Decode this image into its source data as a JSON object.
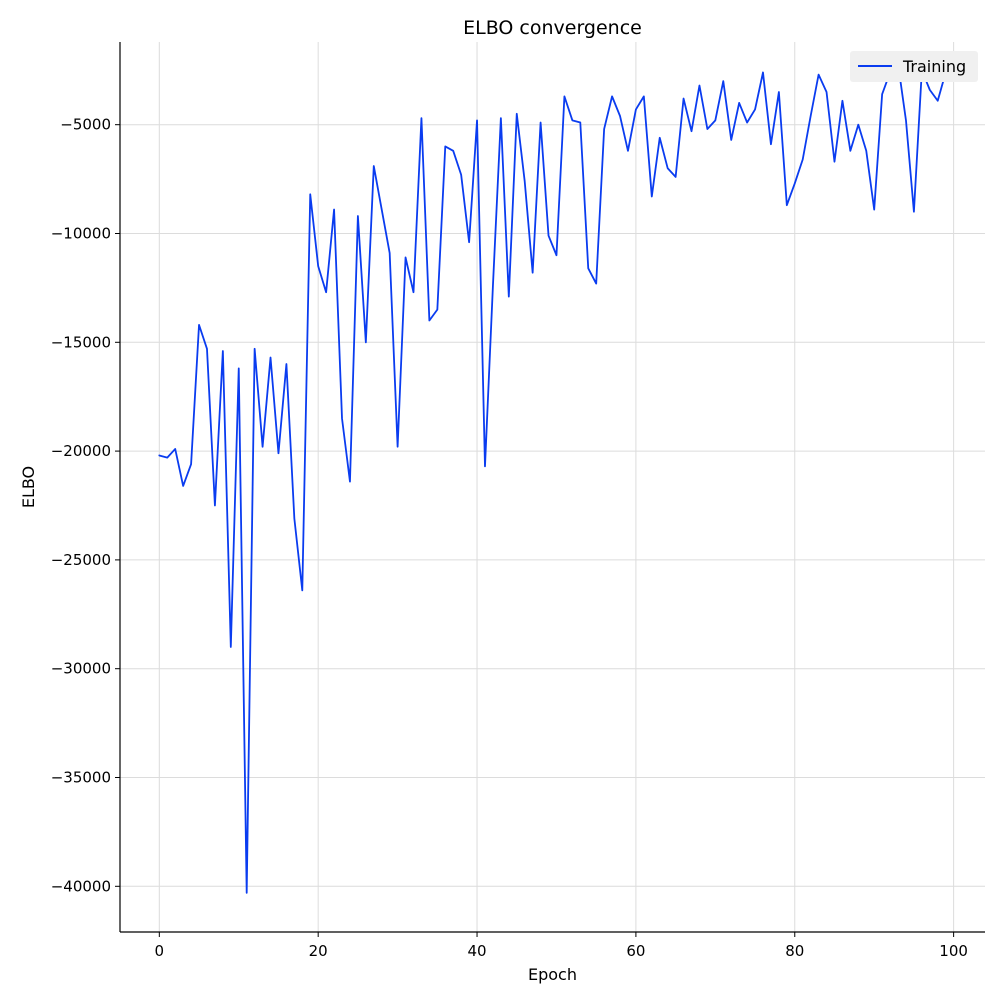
{
  "chart_data": {
    "type": "line",
    "title": "ELBO convergence",
    "xlabel": "Epoch",
    "ylabel": "ELBO",
    "xlim": [
      -4.95,
      103.95
    ],
    "ylim": [
      -42100,
      -1200
    ],
    "xticks": [
      0,
      20,
      40,
      60,
      80,
      100
    ],
    "yticks": [
      -40000,
      -35000,
      -30000,
      -25000,
      -20000,
      -15000,
      -10000,
      -5000
    ],
    "xtick_labels": [
      "0",
      "20",
      "40",
      "60",
      "80",
      "100"
    ],
    "ytick_labels": [
      "−40000",
      "−35000",
      "−30000",
      "−25000",
      "−20000",
      "−15000",
      "−10000",
      "−5000"
    ],
    "grid": true,
    "legend": {
      "position": "top-right",
      "entries": [
        "Training"
      ]
    },
    "series": [
      {
        "name": "Training",
        "color": "#0a3cf0",
        "x": [
          0,
          1,
          2,
          3,
          4,
          5,
          6,
          7,
          8,
          9,
          10,
          11,
          12,
          13,
          14,
          15,
          16,
          17,
          18,
          19,
          20,
          21,
          22,
          23,
          24,
          25,
          26,
          27,
          28,
          29,
          30,
          31,
          32,
          33,
          34,
          35,
          36,
          37,
          38,
          39,
          40,
          41,
          42,
          43,
          44,
          45,
          46,
          47,
          48,
          49,
          50,
          51,
          52,
          53,
          54,
          55,
          56,
          57,
          58,
          59,
          60,
          61,
          62,
          63,
          64,
          65,
          66,
          67,
          68,
          69,
          70,
          71,
          72,
          73,
          74,
          75,
          76,
          77,
          78,
          79,
          80,
          81,
          82,
          83,
          84,
          85,
          86,
          87,
          88,
          89,
          90,
          91,
          92,
          93,
          94,
          95,
          96,
          97,
          98,
          99
        ],
        "values": [
          -20200,
          -20300,
          -19900,
          -21600,
          -20600,
          -14200,
          -15300,
          -22500,
          -15400,
          -29000,
          -16200,
          -40300,
          -15300,
          -19800,
          -15700,
          -20100,
          -16000,
          -23100,
          -26400,
          -8200,
          -11500,
          -12700,
          -8900,
          -18500,
          -21400,
          -9200,
          -15000,
          -6900,
          -8900,
          -10900,
          -19800,
          -11100,
          -12700,
          -4700,
          -14000,
          -13500,
          -6000,
          -6200,
          -7300,
          -10400,
          -4800,
          -20700,
          -12400,
          -4700,
          -12900,
          -4500,
          -7600,
          -11800,
          -4900,
          -10100,
          -11000,
          -3700,
          -4800,
          -4900,
          -11600,
          -12300,
          -5200,
          -3700,
          -4600,
          -6200,
          -4300,
          -3700,
          -8300,
          -5600,
          -7000,
          -7400,
          -3800,
          -5300,
          -3200,
          -5200,
          -4800,
          -3000,
          -5700,
          -4000,
          -4900,
          -4300,
          -2600,
          -5900,
          -3500,
          -8700,
          -7700,
          -6600,
          -4600,
          -2700,
          -3500,
          -6700,
          -3900,
          -6200,
          -5000,
          -6200,
          -8900,
          -3600,
          -2600,
          -2200,
          -4800,
          -9000,
          -2500,
          -3400,
          -3900,
          -2600
        ]
      }
    ]
  }
}
